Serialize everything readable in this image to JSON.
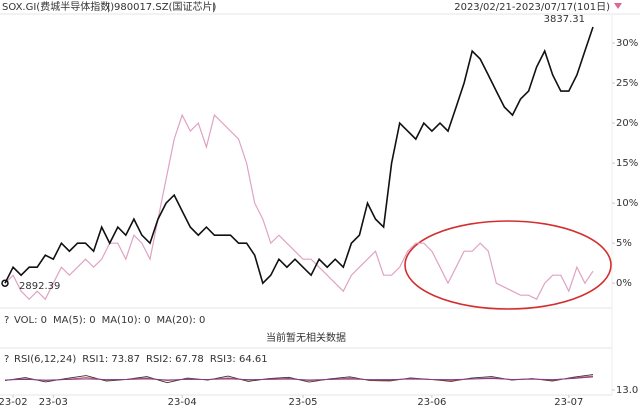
{
  "header": {
    "items": [
      {
        "text": "SOX.GI(费城半导体指数)",
        "color": "#222"
      },
      {
        "text": "|",
        "color": "#888"
      },
      {
        "text": "980017.SZ(国证芯片)",
        "color": "#d86a9a"
      },
      {
        "text": "|",
        "color": "#888"
      }
    ],
    "range": "2023/02/21-2023/07/17(101日)"
  },
  "chart_data": [
    {
      "type": "line",
      "annotations": [
        {
          "text": "3837.31",
          "color": "#d0415a"
        },
        {
          "text": "2892.39",
          "color": "#333"
        }
      ],
      "series": [
        {
          "name": "SOX.GI(费城半导体指数)",
          "color": "#111111",
          "values": [
            0,
            2,
            1,
            2,
            2,
            3.5,
            3,
            5,
            4,
            5,
            5,
            4,
            7,
            5,
            7,
            6,
            8,
            6,
            5,
            8,
            10,
            11,
            9,
            7,
            6,
            7,
            6,
            6,
            6,
            5,
            5,
            3.5,
            0,
            1,
            3,
            2,
            3,
            2,
            1,
            3,
            2,
            3,
            2,
            5,
            6,
            10,
            8,
            7,
            15,
            20,
            19,
            18,
            20,
            19,
            20,
            19,
            22,
            25,
            29,
            28,
            26,
            24,
            22,
            21,
            23,
            24,
            27,
            29,
            26,
            24,
            24,
            26,
            29,
            32
          ]
        },
        {
          "name": "980017.SZ(国证芯片)",
          "color": "#e0a2c4",
          "values": [
            0,
            1,
            -1,
            -2,
            -1,
            -2,
            0,
            2,
            1,
            2,
            3,
            2,
            3,
            5,
            5,
            3,
            6,
            5,
            3,
            8,
            13,
            18,
            21,
            19,
            20,
            17,
            21,
            20,
            19,
            18,
            15,
            10,
            8,
            5,
            6,
            5,
            4,
            3,
            3,
            2,
            1,
            0,
            -1,
            1,
            2,
            3,
            4,
            1,
            1,
            2,
            4,
            5,
            5,
            4,
            2,
            0,
            2,
            4,
            4,
            5,
            4,
            0,
            -0.5,
            -1,
            -1.5,
            -1.5,
            -2,
            0,
            1,
            1,
            -1,
            2,
            0,
            1.5
          ]
        }
      ],
      "xticks": [
        {
          "value": 1,
          "label": "23-02"
        },
        {
          "value": 6,
          "label": "23-03"
        },
        {
          "value": 22,
          "label": "23-04"
        },
        {
          "value": 37,
          "label": "23-05"
        },
        {
          "value": 53,
          "label": "23-06"
        },
        {
          "value": 70,
          "label": "23-07"
        }
      ],
      "ylim": [
        -2.1,
        33.5
      ],
      "yticks": [
        {
          "value": 0,
          "label": "0%"
        },
        {
          "value": 5,
          "label": "5%"
        },
        {
          "value": 10,
          "label": "10%"
        },
        {
          "value": 15,
          "label": "15%"
        },
        {
          "value": 20,
          "label": "20%"
        },
        {
          "value": 25,
          "label": "25%"
        },
        {
          "value": 30,
          "label": "30%"
        }
      ]
    },
    {
      "type": "indicator",
      "help": "?",
      "legend": [
        {
          "text": "VOL: 0",
          "color": "#333"
        },
        {
          "text": "MA(5): 0",
          "color": "#333"
        },
        {
          "text": "MA(10): 0",
          "color": "#d0415a"
        },
        {
          "text": "MA(20): 0",
          "color": "#7a3c8c"
        }
      ],
      "message": "当前暂无相关数据"
    },
    {
      "type": "rsi",
      "help": "?",
      "legend": [
        {
          "text": "RSI(6,12,24)",
          "color": "#333"
        },
        {
          "text": "RSI1: 73.87",
          "color": "#333"
        },
        {
          "text": "RSI2: 67.78",
          "color": "#d0415a"
        },
        {
          "text": "RSI3: 64.61",
          "color": "#7a3c8c"
        }
      ],
      "ylim": [
        5,
        100
      ],
      "yticks": [
        {
          "value": 13,
          "label": "13.0"
        }
      ],
      "series": [
        {
          "name": "RSI1",
          "color": "#333333",
          "values": [
            50,
            62,
            45,
            58,
            70,
            48,
            55,
            66,
            42,
            60,
            52,
            68,
            47,
            58,
            63,
            44,
            57,
            65,
            50,
            49,
            61,
            55,
            47,
            60,
            66,
            52,
            58,
            48,
            63,
            73.87
          ]
        },
        {
          "name": "RSI2",
          "color": "#d0415a",
          "values": [
            52,
            57,
            50,
            55,
            62,
            53,
            55,
            60,
            50,
            56,
            54,
            61,
            52,
            56,
            59,
            50,
            55,
            60,
            53,
            52,
            58,
            55,
            51,
            57,
            61,
            54,
            56,
            52,
            60,
            67.78
          ]
        },
        {
          "name": "RSI3",
          "color": "#7a3c8c",
          "values": [
            53,
            55,
            52,
            54,
            57,
            54,
            55,
            57,
            53,
            55,
            55,
            57,
            54,
            55,
            56,
            53,
            55,
            56,
            54,
            54,
            56,
            55,
            54,
            56,
            58,
            55,
            56,
            54,
            58,
            64.61
          ]
        }
      ]
    }
  ]
}
